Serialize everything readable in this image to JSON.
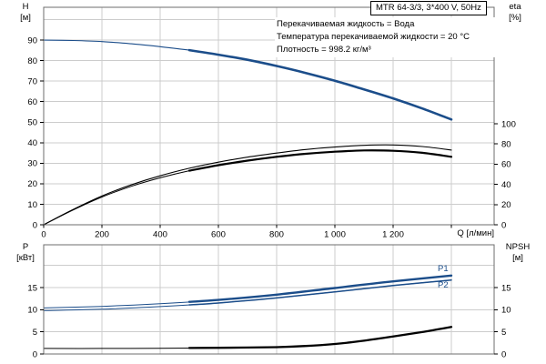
{
  "title_box": {
    "text": "MTR 64-3/3, 3*400 V, 50Hz"
  },
  "annotations": {
    "lines": [
      "Перекачиваемая жидкость = Вода",
      "Температура перекачиваемой жидкости = 20 °C",
      "Плотность = 998.2 кг/м³"
    ]
  },
  "axis_labels": {
    "h_top": "H",
    "h_unit": "[м]",
    "eta_top": "eta",
    "eta_unit": "[%]",
    "p_top": "P",
    "p_unit": "[кВт]",
    "npsh_top": "NPSH",
    "npsh_unit": "[м]",
    "q": "Q [л/мин]"
  },
  "curve_labels": {
    "p1": "P1",
    "p2": "P2"
  },
  "colors": {
    "curve_blue": "#1b4d8a",
    "curve_black": "#000000",
    "grid": "#cccccc",
    "frame": "#6e6e6e",
    "tick": "#000000"
  },
  "chart_data": [
    {
      "type": "line",
      "title": "Pump head and efficiency curves",
      "x": {
        "min": 0,
        "max": 1547,
        "grid": [
          200,
          400,
          600,
          800,
          1000,
          1200,
          1400
        ],
        "tick_marks": [
          0,
          200,
          400,
          600,
          800,
          1000,
          1200,
          1400
        ],
        "label_ticks": [
          {
            "v": 0,
            "t": "0"
          },
          {
            "v": 200,
            "t": "200"
          },
          {
            "v": 400,
            "t": "400"
          },
          {
            "v": 600,
            "t": "600"
          },
          {
            "v": 800,
            "t": "800"
          },
          {
            "v": 1000,
            "t": "1 000"
          },
          {
            "v": 1200,
            "t": "1 200"
          }
        ],
        "show_labels": true,
        "axis_label": "Q [л/мин]"
      },
      "y_left": {
        "label": "H [м]",
        "min": 0,
        "max": 106,
        "grid": [
          10,
          20,
          30,
          40,
          50,
          60,
          70,
          80,
          90,
          100
        ],
        "labels": [
          0,
          10,
          20,
          30,
          40,
          50,
          60,
          70,
          80,
          90
        ]
      },
      "y_right": {
        "label": "eta [%]",
        "min": 0,
        "max": 215.4,
        "labels": [
          0,
          20,
          40,
          60,
          80,
          100
        ]
      },
      "series": [
        {
          "name": "H",
          "axis": "left",
          "color": "#1b4d8a",
          "width": 1.1,
          "bold_from": 500,
          "bold_width": 2.6,
          "points": [
            [
              0,
              90
            ],
            [
              100,
              89.8
            ],
            [
              200,
              89.3
            ],
            [
              300,
              88.2
            ],
            [
              400,
              86.8
            ],
            [
              500,
              85.1
            ],
            [
              600,
              82.9
            ],
            [
              700,
              80.4
            ],
            [
              800,
              77.4
            ],
            [
              900,
              74.0
            ],
            [
              1000,
              70.2
            ],
            [
              1100,
              66.0
            ],
            [
              1200,
              61.6
            ],
            [
              1300,
              56.7
            ],
            [
              1400,
              51.3
            ]
          ]
        },
        {
          "name": "eta2",
          "axis": "right",
          "color": "#000000",
          "width": 1.1,
          "bold_from": null,
          "bold_width": null,
          "points": [
            [
              0,
              0
            ],
            [
              100,
              15
            ],
            [
              200,
              28.5
            ],
            [
              300,
              39.5
            ],
            [
              400,
              48.5
            ],
            [
              500,
              56
            ],
            [
              600,
              62
            ],
            [
              700,
              67
            ],
            [
              800,
              71
            ],
            [
              900,
              74.5
            ],
            [
              1000,
              77
            ],
            [
              1100,
              78.7
            ],
            [
              1200,
              79
            ],
            [
              1300,
              77.5
            ],
            [
              1400,
              74
            ]
          ]
        },
        {
          "name": "eta1",
          "axis": "right",
          "color": "#000000",
          "width": 1,
          "bold_from": 500,
          "bold_width": 2.2,
          "points": [
            [
              0,
              0
            ],
            [
              100,
              14.5
            ],
            [
              200,
              27.5
            ],
            [
              300,
              38
            ],
            [
              400,
              46.5
            ],
            [
              500,
              53.5
            ],
            [
              600,
              59
            ],
            [
              700,
              63.5
            ],
            [
              800,
              67.3
            ],
            [
              900,
              70.3
            ],
            [
              1000,
              72.4
            ],
            [
              1100,
              73.6
            ],
            [
              1200,
              73.3
            ],
            [
              1300,
              71.3
            ],
            [
              1400,
              67.3
            ]
          ]
        }
      ]
    },
    {
      "type": "line",
      "title": "Power and NPSH curves",
      "x": {
        "min": 0,
        "max": 1547,
        "grid": [
          200,
          400,
          600,
          800,
          1000,
          1200,
          1400
        ],
        "tick_marks": [],
        "label_ticks": [],
        "show_labels": false,
        "axis_label": ""
      },
      "y_left": {
        "label": "P [кВт]",
        "min": 0,
        "max": 24.65,
        "grid": [
          5,
          10,
          15,
          20
        ],
        "labels": [
          0,
          5,
          10,
          15
        ]
      },
      "y_right": {
        "label": "NPSH [м]",
        "min": 0,
        "max": 24.65,
        "labels": [
          0,
          5,
          10,
          15
        ]
      },
      "series": [
        {
          "name": "P1",
          "axis": "left",
          "color": "#1b4d8a",
          "width": 1,
          "bold_from": 500,
          "bold_width": 2.4,
          "points": [
            [
              0,
              10.4
            ],
            [
              200,
              10.75
            ],
            [
              400,
              11.35
            ],
            [
              600,
              12.2
            ],
            [
              800,
              13.4
            ],
            [
              1000,
              14.9
            ],
            [
              1200,
              16.4
            ],
            [
              1400,
              17.7
            ]
          ]
        },
        {
          "name": "P2",
          "axis": "left",
          "color": "#1b4d8a",
          "width": 1,
          "bold_from": 500,
          "bold_width": 1.5,
          "points": [
            [
              0,
              9.8
            ],
            [
              200,
              10.1
            ],
            [
              400,
              10.7
            ],
            [
              600,
              11.5
            ],
            [
              800,
              12.65
            ],
            [
              1000,
              14.0
            ],
            [
              1200,
              15.45
            ],
            [
              1400,
              16.7
            ]
          ]
        },
        {
          "name": "NPSH",
          "axis": "right",
          "color": "#000000",
          "width": 1,
          "bold_from": 500,
          "bold_width": 2.3,
          "points": [
            [
              0,
              1.25
            ],
            [
              200,
              1.25
            ],
            [
              400,
              1.3
            ],
            [
              600,
              1.4
            ],
            [
              800,
              1.55
            ],
            [
              900,
              1.8
            ],
            [
              1000,
              2.25
            ],
            [
              1100,
              3.0
            ],
            [
              1200,
              3.95
            ],
            [
              1300,
              4.95
            ],
            [
              1400,
              6.1
            ]
          ]
        }
      ]
    }
  ]
}
